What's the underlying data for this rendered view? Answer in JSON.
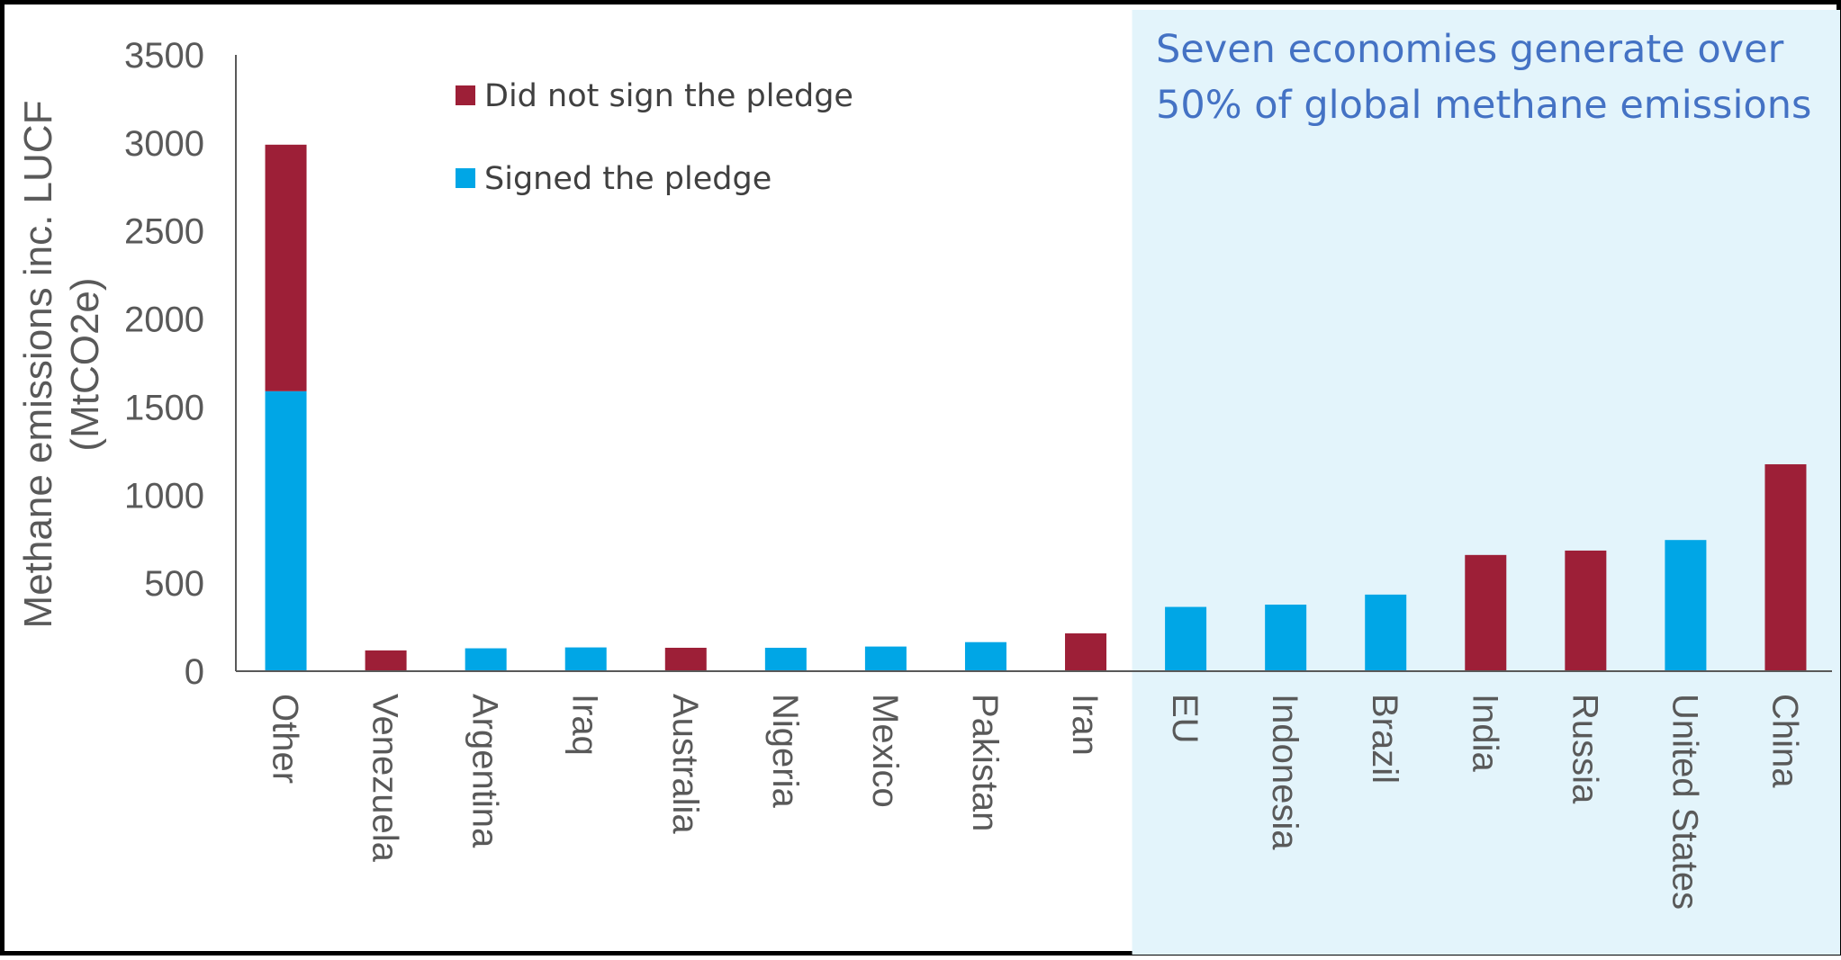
{
  "chart_data": {
    "type": "bar",
    "stacked": true,
    "categories": [
      "Other",
      "Venezuela",
      "Argentina",
      "Iraq",
      "Australia",
      "Nigeria",
      "Mexico",
      "Pakistan",
      "Iran",
      "EU",
      "Indonesia",
      "Brazil",
      "India",
      "Russia",
      "United States",
      "China"
    ],
    "series": [
      {
        "name": "Signed the pledge",
        "color": "#00a6e6",
        "values": [
          1590,
          0,
          130,
          135,
          0,
          133,
          140,
          165,
          0,
          365,
          378,
          435,
          0,
          0,
          745,
          0
        ]
      },
      {
        "name": "Did not sign the pledge",
        "color": "#9d1f37",
        "values": [
          1400,
          118,
          0,
          0,
          133,
          0,
          0,
          0,
          215,
          0,
          0,
          0,
          660,
          685,
          0,
          1175
        ]
      }
    ],
    "ylabel": [
      "Methane emissions inc. LUCF",
      "(MtCO2e)"
    ],
    "ylim": [
      0,
      3500
    ],
    "yticks": [
      "0",
      "500",
      "1000",
      "1500",
      "2000",
      "2500",
      "3000",
      "3500"
    ],
    "grid": false,
    "legend_position": "top-left",
    "legend_order": [
      "Did not sign the pledge",
      "Signed the pledge"
    ],
    "annotation": {
      "lines": [
        "Seven economies generate over",
        "50% of global methane emissions"
      ],
      "highlight_from_category": "EU",
      "highlight_color": "#e3f4fb"
    }
  }
}
